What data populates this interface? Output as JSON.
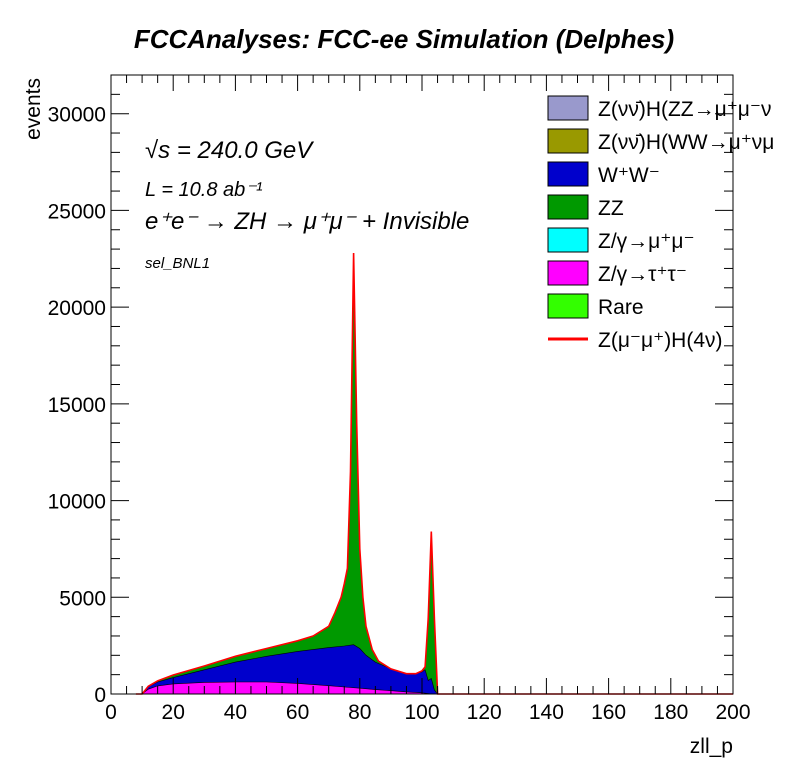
{
  "chart_data": {
    "type": "area",
    "title": "FCCAnalyses: FCC-ee Simulation (Delphes)",
    "xlabel": "zll_p",
    "ylabel": "events",
    "xlim": [
      0,
      200
    ],
    "ylim": [
      0,
      32000
    ],
    "x_ticks": [
      "0",
      "20",
      "40",
      "60",
      "80",
      "100",
      "120",
      "140",
      "160",
      "180",
      "200"
    ],
    "y_ticks": [
      "0",
      "5000",
      "10000",
      "15000",
      "20000",
      "25000",
      "30000"
    ],
    "annotations": {
      "sqrt_s": "√s = 240.0 GeV",
      "lumi": "L = 10.8 ab⁻¹",
      "process": "e⁺e⁻ → ZH → μ⁺μ⁻ + Invisible",
      "selection": "sel_BNL1"
    },
    "legend_position": "top-right",
    "stack_order": [
      "Z/γ→τ⁺τ⁻",
      "W⁺W⁻",
      "ZZ",
      "Z/γ→μ⁺μ⁻"
    ],
    "stacked_series": [
      {
        "name": "Z/γ→τ⁺τ⁻",
        "color": "#ff00ff",
        "points": [
          [
            8,
            0
          ],
          [
            10,
            0
          ],
          [
            12,
            250
          ],
          [
            15,
            420
          ],
          [
            20,
            520
          ],
          [
            30,
            600
          ],
          [
            40,
            620
          ],
          [
            50,
            620
          ],
          [
            60,
            550
          ],
          [
            70,
            430
          ],
          [
            75,
            360
          ],
          [
            80,
            300
          ],
          [
            85,
            230
          ],
          [
            90,
            170
          ],
          [
            95,
            110
          ],
          [
            100,
            60
          ],
          [
            102,
            20
          ],
          [
            103,
            0
          ],
          [
            200,
            0
          ]
        ]
      },
      {
        "name": "W⁺W⁻",
        "color": "#0000cc",
        "points": [
          [
            8,
            0
          ],
          [
            10,
            0
          ],
          [
            12,
            380
          ],
          [
            15,
            620
          ],
          [
            20,
            850
          ],
          [
            30,
            1250
          ],
          [
            40,
            1650
          ],
          [
            50,
            1950
          ],
          [
            60,
            2200
          ],
          [
            70,
            2400
          ],
          [
            75,
            2480
          ],
          [
            78,
            2550
          ],
          [
            80,
            2350
          ],
          [
            82,
            2000
          ],
          [
            85,
            1650
          ],
          [
            90,
            1300
          ],
          [
            95,
            1050
          ],
          [
            98,
            1050
          ],
          [
            100,
            1150
          ],
          [
            101,
            1250
          ],
          [
            102,
            700
          ],
          [
            103,
            800
          ],
          [
            104,
            200
          ],
          [
            105,
            0
          ],
          [
            200,
            0
          ]
        ]
      },
      {
        "name": "ZZ",
        "color": "#009900",
        "points": [
          [
            8,
            0
          ],
          [
            10,
            0
          ],
          [
            12,
            400
          ],
          [
            15,
            680
          ],
          [
            20,
            980
          ],
          [
            30,
            1450
          ],
          [
            40,
            1950
          ],
          [
            50,
            2350
          ],
          [
            60,
            2750
          ],
          [
            65,
            3000
          ],
          [
            70,
            3500
          ],
          [
            72,
            4200
          ],
          [
            74,
            5000
          ],
          [
            75,
            5700
          ],
          [
            76,
            6500
          ],
          [
            77,
            11500
          ],
          [
            78,
            22800
          ],
          [
            79,
            14000
          ],
          [
            80,
            7500
          ],
          [
            81,
            5000
          ],
          [
            82,
            3500
          ],
          [
            84,
            2300
          ],
          [
            86,
            1700
          ],
          [
            90,
            1300
          ],
          [
            95,
            1050
          ],
          [
            98,
            1050
          ],
          [
            100,
            1200
          ],
          [
            101,
            1400
          ],
          [
            102,
            3900
          ],
          [
            103,
            8400
          ],
          [
            104,
            3900
          ],
          [
            105,
            0
          ],
          [
            200,
            0
          ]
        ]
      },
      {
        "name": "Z/γ→μ⁺μ⁻",
        "color": "#00ffff",
        "points": [
          [
            8,
            0
          ],
          [
            10,
            0
          ],
          [
            12,
            400
          ],
          [
            15,
            680
          ],
          [
            20,
            980
          ],
          [
            30,
            1450
          ],
          [
            40,
            1950
          ],
          [
            50,
            2350
          ],
          [
            60,
            2750
          ],
          [
            65,
            3000
          ],
          [
            70,
            3500
          ],
          [
            72,
            4200
          ],
          [
            74,
            5000
          ],
          [
            75,
            5700
          ],
          [
            76,
            6500
          ],
          [
            77,
            11500
          ],
          [
            78,
            22800
          ],
          [
            79,
            14000
          ],
          [
            80,
            7500
          ],
          [
            81,
            5000
          ],
          [
            82,
            3500
          ],
          [
            84,
            2300
          ],
          [
            86,
            1700
          ],
          [
            90,
            1300
          ],
          [
            95,
            1050
          ],
          [
            98,
            1050
          ],
          [
            100,
            1200
          ],
          [
            101,
            1400
          ],
          [
            102,
            3900
          ],
          [
            103,
            8400
          ],
          [
            104,
            3900
          ],
          [
            105,
            0
          ],
          [
            200,
            0
          ]
        ]
      }
    ],
    "signal_line": {
      "name": "Z(μ⁻μ⁺)H(4ν)",
      "color": "#ff0000",
      "note_total": true
    },
    "legend": [
      {
        "label": "Z(νν̄)H(ZZ→μ⁺μ⁻ν",
        "color": "#9999cc",
        "kind": "box"
      },
      {
        "label": "Z(νν̄)H(WW→μ⁺νμ",
        "color": "#999900",
        "kind": "box"
      },
      {
        "label": "W⁺W⁻",
        "color": "#0000cc",
        "kind": "box"
      },
      {
        "label": "ZZ",
        "color": "#009900",
        "kind": "box"
      },
      {
        "label": "Z/γ→μ⁺μ⁻",
        "color": "#00ffff",
        "kind": "box"
      },
      {
        "label": "Z/γ→τ⁺τ⁻",
        "color": "#ff00ff",
        "kind": "box"
      },
      {
        "label": "Rare",
        "color": "#33ff00",
        "kind": "box"
      },
      {
        "label": "Z(μ⁻μ⁺)H(4ν)",
        "color": "#ff0000",
        "kind": "line"
      }
    ]
  }
}
